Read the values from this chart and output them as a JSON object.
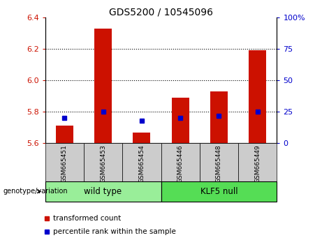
{
  "title": "GDS5200 / 10545096",
  "samples": [
    "GSM665451",
    "GSM665453",
    "GSM665454",
    "GSM665446",
    "GSM665448",
    "GSM665449"
  ],
  "transformed_count": [
    5.71,
    6.33,
    5.67,
    5.89,
    5.93,
    6.19
  ],
  "percentile_rank": [
    20,
    25,
    18,
    20,
    22,
    25
  ],
  "ylim_left": [
    5.6,
    6.4
  ],
  "ylim_right": [
    0,
    100
  ],
  "yticks_left": [
    5.6,
    5.8,
    6.0,
    6.2,
    6.4
  ],
  "yticks_right": [
    0,
    25,
    50,
    75,
    100
  ],
  "bar_color": "#cc1100",
  "dot_color": "#0000cc",
  "grid_color": "#000000",
  "wild_type_label": "wild type",
  "klf5_null_label": "KLF5 null",
  "legend_bar_label": "transformed count",
  "legend_dot_label": "percentile rank within the sample",
  "genotype_label": "genotype/variation",
  "tick_label_color_left": "#cc1100",
  "tick_label_color_right": "#0000cc",
  "background_xticklabel": "#cccccc",
  "background_wildtype": "#99ee99",
  "background_klf5": "#55dd55",
  "bar_width": 0.45,
  "bar_bottom": 5.6
}
